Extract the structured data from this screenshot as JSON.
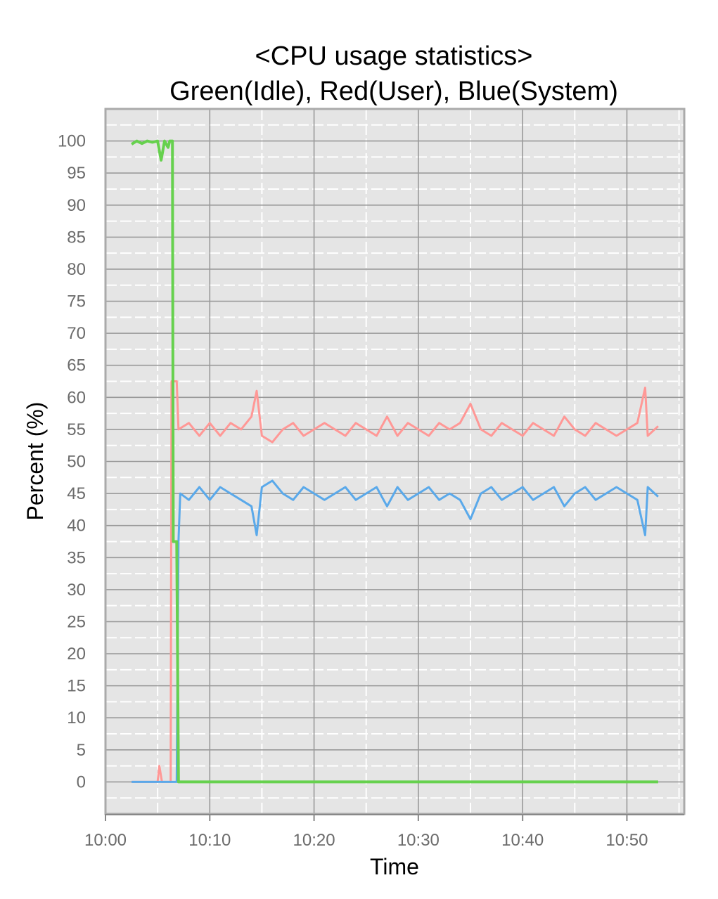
{
  "chart_data": {
    "type": "line",
    "title": "<CPU usage statistics>",
    "subtitle": "Green(Idle), Red(User), Blue(System)",
    "xlabel": "Time",
    "ylabel": "Percent (%)",
    "x_range_minutes": [
      0,
      55.5
    ],
    "ylim": [
      -5,
      105
    ],
    "x_ticks": [
      {
        "minute": 0,
        "label": "10:00"
      },
      {
        "minute": 10,
        "label": "10:10"
      },
      {
        "minute": 20,
        "label": "10:20"
      },
      {
        "minute": 30,
        "label": "10:30"
      },
      {
        "minute": 40,
        "label": "10:40"
      },
      {
        "minute": 50,
        "label": "10:50"
      }
    ],
    "y_ticks": [
      0,
      5,
      10,
      15,
      20,
      25,
      30,
      35,
      40,
      45,
      50,
      55,
      60,
      65,
      70,
      75,
      80,
      85,
      90,
      95,
      100
    ],
    "grid": true,
    "series": [
      {
        "name": "Idle",
        "color": "#66d14e",
        "points": [
          [
            "10:02:30",
            99.5
          ],
          [
            "10:03:00",
            100
          ],
          [
            "10:03:30",
            99.6
          ],
          [
            "10:04:00",
            100
          ],
          [
            "10:04:30",
            99.8
          ],
          [
            "10:05:00",
            100
          ],
          [
            "10:05:20",
            97
          ],
          [
            "10:05:40",
            100
          ],
          [
            "10:06:00",
            99
          ],
          [
            "10:06:10",
            100
          ],
          [
            "10:06:25",
            100
          ],
          [
            "10:06:30",
            37.5
          ],
          [
            "10:06:50",
            37.5
          ],
          [
            "10:07:00",
            0
          ],
          [
            "10:53:00",
            0
          ]
        ]
      },
      {
        "name": "User",
        "color": "#ff9896",
        "points": [
          [
            "10:02:30",
            0
          ],
          [
            "10:05:00",
            0
          ],
          [
            "10:05:10",
            2.5
          ],
          [
            "10:05:25",
            0
          ],
          [
            "10:06:15",
            0
          ],
          [
            "10:06:20",
            62.5
          ],
          [
            "10:06:50",
            62.5
          ],
          [
            "10:07:00",
            55
          ],
          [
            "10:08:00",
            56
          ],
          [
            "10:09:00",
            54
          ],
          [
            "10:10:00",
            56
          ],
          [
            "10:11:00",
            54
          ],
          [
            "10:12:00",
            56
          ],
          [
            "10:13:00",
            55
          ],
          [
            "10:14:00",
            57
          ],
          [
            "10:14:30",
            61
          ],
          [
            "10:15:00",
            54
          ],
          [
            "10:16:00",
            53
          ],
          [
            "10:17:00",
            55
          ],
          [
            "10:18:00",
            56
          ],
          [
            "10:19:00",
            54
          ],
          [
            "10:20:00",
            55
          ],
          [
            "10:21:00",
            56
          ],
          [
            "10:22:00",
            55
          ],
          [
            "10:23:00",
            54
          ],
          [
            "10:24:00",
            56
          ],
          [
            "10:25:00",
            55
          ],
          [
            "10:26:00",
            54
          ],
          [
            "10:27:00",
            57
          ],
          [
            "10:28:00",
            54
          ],
          [
            "10:29:00",
            56
          ],
          [
            "10:30:00",
            55
          ],
          [
            "10:31:00",
            54
          ],
          [
            "10:32:00",
            56
          ],
          [
            "10:33:00",
            55
          ],
          [
            "10:34:00",
            56
          ],
          [
            "10:35:00",
            59
          ],
          [
            "10:36:00",
            55
          ],
          [
            "10:37:00",
            54
          ],
          [
            "10:38:00",
            56
          ],
          [
            "10:39:00",
            55
          ],
          [
            "10:40:00",
            54
          ],
          [
            "10:41:00",
            56
          ],
          [
            "10:42:00",
            55
          ],
          [
            "10:43:00",
            54
          ],
          [
            "10:44:00",
            57
          ],
          [
            "10:45:00",
            55
          ],
          [
            "10:46:00",
            54
          ],
          [
            "10:47:00",
            56
          ],
          [
            "10:48:00",
            55
          ],
          [
            "10:49:00",
            54
          ],
          [
            "10:50:00",
            55
          ],
          [
            "10:51:00",
            56
          ],
          [
            "10:51:45",
            61.5
          ],
          [
            "10:52:00",
            54
          ],
          [
            "10:53:00",
            55.5
          ]
        ]
      },
      {
        "name": "System",
        "color": "#5aa9ea",
        "points": [
          [
            "10:02:30",
            0
          ],
          [
            "10:06:50",
            0
          ],
          [
            "10:07:00",
            37.5
          ],
          [
            "10:07:10",
            45
          ],
          [
            "10:08:00",
            44
          ],
          [
            "10:09:00",
            46
          ],
          [
            "10:10:00",
            44
          ],
          [
            "10:11:00",
            46
          ],
          [
            "10:12:00",
            45
          ],
          [
            "10:13:00",
            44
          ],
          [
            "10:14:00",
            43
          ],
          [
            "10:14:30",
            38.5
          ],
          [
            "10:15:00",
            46
          ],
          [
            "10:16:00",
            47
          ],
          [
            "10:17:00",
            45
          ],
          [
            "10:18:00",
            44
          ],
          [
            "10:19:00",
            46
          ],
          [
            "10:20:00",
            45
          ],
          [
            "10:21:00",
            44
          ],
          [
            "10:22:00",
            45
          ],
          [
            "10:23:00",
            46
          ],
          [
            "10:24:00",
            44
          ],
          [
            "10:25:00",
            45
          ],
          [
            "10:26:00",
            46
          ],
          [
            "10:27:00",
            43
          ],
          [
            "10:28:00",
            46
          ],
          [
            "10:29:00",
            44
          ],
          [
            "10:30:00",
            45
          ],
          [
            "10:31:00",
            46
          ],
          [
            "10:32:00",
            44
          ],
          [
            "10:33:00",
            45
          ],
          [
            "10:34:00",
            44
          ],
          [
            "10:35:00",
            41
          ],
          [
            "10:36:00",
            45
          ],
          [
            "10:37:00",
            46
          ],
          [
            "10:38:00",
            44
          ],
          [
            "10:39:00",
            45
          ],
          [
            "10:40:00",
            46
          ],
          [
            "10:41:00",
            44
          ],
          [
            "10:42:00",
            45
          ],
          [
            "10:43:00",
            46
          ],
          [
            "10:44:00",
            43
          ],
          [
            "10:45:00",
            45
          ],
          [
            "10:46:00",
            46
          ],
          [
            "10:47:00",
            44
          ],
          [
            "10:48:00",
            45
          ],
          [
            "10:49:00",
            46
          ],
          [
            "10:50:00",
            45
          ],
          [
            "10:51:00",
            44
          ],
          [
            "10:51:45",
            38.5
          ],
          [
            "10:52:00",
            46
          ],
          [
            "10:53:00",
            44.5
          ]
        ]
      }
    ]
  }
}
